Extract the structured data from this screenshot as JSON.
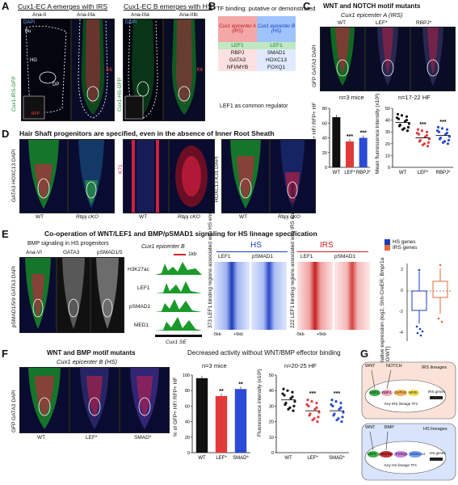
{
  "panels": {
    "A": {
      "letter": "A",
      "title_left": "Cux1-EC A emerges with IRS",
      "title_right": "Cux1-EC B emerges with HS",
      "stages": [
        "Ana-II",
        "Ana-IIIa",
        "Ana-IIIa",
        "Ana-IIIb"
      ],
      "region_labels": [
        "Bu",
        "HG",
        "DP"
      ],
      "side_left": "Cux1-IRS-GFP",
      "side_right": "Cux1-HS-GFP",
      "dapi": "DAPI",
      "k6": "K6",
      "rfp": "RFP"
    },
    "B": {
      "letter": "B",
      "title": "TF binding: putative or demonstrated",
      "col_a": "Cux1 epicenter A (IRS)",
      "col_b": "Cux1 epicenter B (HS)",
      "rows": [
        [
          "LEF1",
          "LEF1"
        ],
        [
          "RBPJ",
          "SMAD1"
        ],
        [
          "GATA3",
          "HOXC13"
        ],
        [
          "NFI/MYB",
          "FOXQ1"
        ]
      ],
      "footer": "LEF1 as common regulator"
    },
    "C": {
      "letter": "C",
      "title": "WNT and NOTCH motif mutants",
      "subtitle": "Cux1 epicenter A (IRS)",
      "genotypes": [
        "WT",
        "LEF*",
        "RBPJ*"
      ],
      "side": "GFP GATA3 DAPI",
      "n_left": "n=3 mice",
      "n_right": "n=17-22 HF",
      "ylabel_left": "% of GFP+ HF/ RFP+ HF",
      "ylabel_right": "Mean fluorescence intensity (x10³)",
      "sig": "***"
    },
    "D": {
      "letter": "D",
      "title": "Hair Shaft progenitors are specified, even in the absence of Inner Root Sheath",
      "markers": [
        "GATA3 HOXC13 DAPI",
        "K71",
        "HOXC13 K31 DAPI"
      ],
      "genotypes": [
        "WT",
        "Rbpj cKO",
        "WT",
        "Rbpj cKO",
        "WT",
        "Rbpj cKO"
      ]
    },
    "E": {
      "letter": "E",
      "title": "Co-operation of WNT/LEF1 and BMP/pSMAD1 signaling for HS lineage specification",
      "sub_left": "BMP signaling in HS progenitors",
      "stages": [
        "Ana-VI",
        "GATA3",
        "pSMAD1/5"
      ],
      "side": "pSMAD1/5/9 GATA3 DAPI",
      "track_title": "Cux1 epicenter B",
      "scale": "1kb",
      "tracks": [
        "H3K27ac",
        "LEF1",
        "pSMAD1",
        "MED1"
      ],
      "track_foot": "Cux1 SE",
      "hs_title": "HS",
      "irs_title": "IRS",
      "hm_cols": [
        "LEF1",
        "pSMAD1"
      ],
      "hs_rows": "373 LEF1 binding regions associated with HS enriched genes",
      "irs_rows": "222 LEF1 binding regions associated with IRS enriched genes",
      "axis_ticks": [
        "-5kb",
        "+5kb"
      ],
      "legend": [
        "HS genes",
        "IRS genes"
      ],
      "box_ylabel": "Relative expression (log2, Shh-CreER; Bmpr1a cKO/WT)",
      "box_ticks": [
        "2",
        "0",
        "-2",
        "-4"
      ]
    },
    "F": {
      "letter": "F",
      "title": "WNT and BMP motif mutants",
      "subtitle": "Cux1 epicenter B (HS)",
      "genotypes": [
        "WT",
        "LEF*",
        "SMAD*"
      ],
      "side": "GFP GATA3 DAPI",
      "chart_title": "Decreased activity without WNT/BMP effector binding",
      "n_left": "n=3 mice",
      "n_right": "n=20-25 HF",
      "ylabel_left": "% of GFP+ HF/ RFP+ HF",
      "ylabel_right": "Fluorescence intensity (x10³)",
      "sig_left": "**",
      "sig_right": "***"
    },
    "G": {
      "letter": "G",
      "irs_title": "IRS lineages",
      "irs_signals": [
        "WNT",
        "NOTCH"
      ],
      "irs_tfs": [
        "LEF1",
        "RBPJ",
        "GATA3",
        "MYB"
      ],
      "irs_target": "IRS genes",
      "irs_caption": "Key IRS lineage TFs",
      "hs_title": "HS lineages",
      "hs_signals": [
        "WNT",
        "BMP"
      ],
      "hs_tfs": [
        "LEF1",
        "pSMAD1",
        "FOXQ1",
        "HOXC13"
      ],
      "hs_target": "HS genes",
      "hs_caption": "Key HS lineage TFs"
    }
  },
  "chart_data": [
    {
      "type": "bar",
      "panel": "C-left",
      "categories": [
        "WT",
        "LEF*",
        "RBPJ*"
      ],
      "values": [
        68,
        35,
        40
      ],
      "ylim": [
        0,
        80
      ],
      "yticks": [
        0,
        20,
        40,
        60,
        80
      ]
    },
    {
      "type": "scatter",
      "panel": "C-right",
      "categories": [
        "WT",
        "LEF*",
        "RBPJ*"
      ],
      "means": [
        38,
        25,
        27
      ],
      "ylim": [
        0,
        50
      ],
      "yticks": [
        0,
        10,
        20,
        30,
        40,
        50
      ]
    },
    {
      "type": "bar",
      "panel": "F-left",
      "categories": [
        "WT",
        "LEF*",
        "SMAD*"
      ],
      "values": [
        96,
        73,
        82
      ],
      "ylim": [
        0,
        100
      ],
      "yticks": [
        0,
        20,
        40,
        60,
        80,
        100
      ]
    },
    {
      "type": "scatter",
      "panel": "F-right",
      "categories": [
        "WT",
        "LEF*",
        "SMAD*"
      ],
      "means": [
        34,
        27,
        27
      ],
      "ylim": [
        0,
        50
      ],
      "yticks": [
        0,
        10,
        20,
        30,
        40,
        50
      ]
    }
  ]
}
